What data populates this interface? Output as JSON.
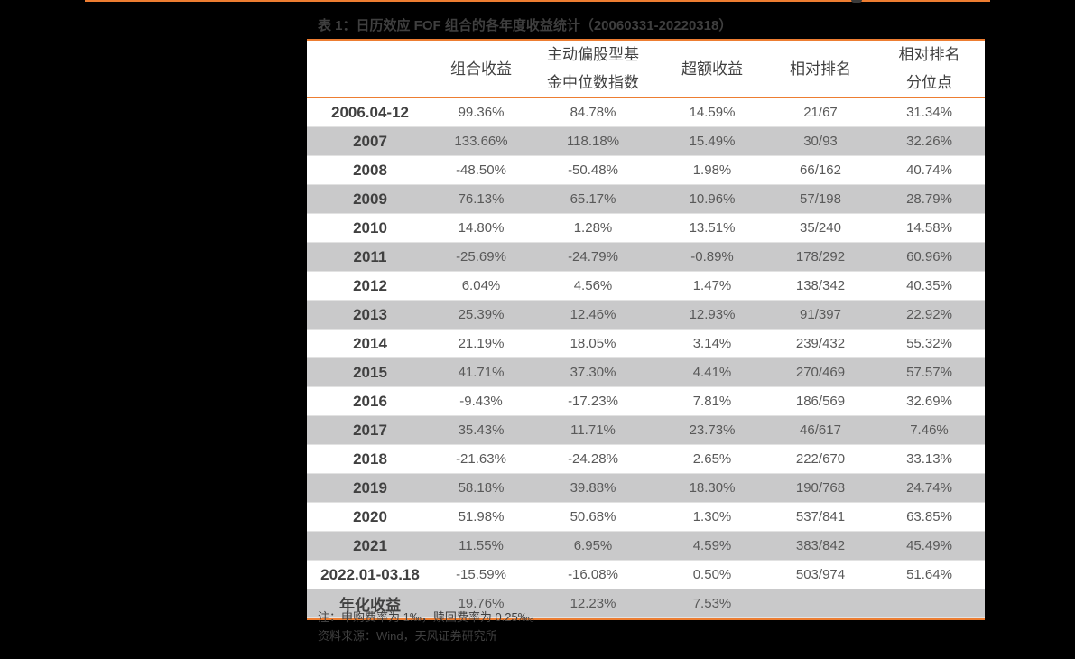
{
  "title": "表 1：日历效应 FOF 组合的各年度收益统计（20060331-20220318）",
  "colors": {
    "accent_rule": "#ED7D31",
    "shaded_row": "#C9C9CA",
    "background": "#000000",
    "text": "#404040"
  },
  "table": {
    "headers": [
      {
        "line1": "",
        "line2": ""
      },
      {
        "line1": "组合收益",
        "line2": ""
      },
      {
        "line1": "主动偏股型基",
        "line2": "金中位数指数"
      },
      {
        "line1": "超额收益",
        "line2": ""
      },
      {
        "line1": "相对排名",
        "line2": ""
      },
      {
        "line1": "相对排名",
        "line2": "分位点"
      }
    ],
    "rows": [
      {
        "period": "2006.04-12",
        "portfolio_return": "99.36%",
        "median_index": "84.78%",
        "excess_return": "14.59%",
        "rank": "21/67",
        "rank_percentile": "31.34%"
      },
      {
        "period": "2007",
        "portfolio_return": "133.66%",
        "median_index": "118.18%",
        "excess_return": "15.49%",
        "rank": "30/93",
        "rank_percentile": "32.26%"
      },
      {
        "period": "2008",
        "portfolio_return": "-48.50%",
        "median_index": "-50.48%",
        "excess_return": "1.98%",
        "rank": "66/162",
        "rank_percentile": "40.74%"
      },
      {
        "period": "2009",
        "portfolio_return": "76.13%",
        "median_index": "65.17%",
        "excess_return": "10.96%",
        "rank": "57/198",
        "rank_percentile": "28.79%"
      },
      {
        "period": "2010",
        "portfolio_return": "14.80%",
        "median_index": "1.28%",
        "excess_return": "13.51%",
        "rank": "35/240",
        "rank_percentile": "14.58%"
      },
      {
        "period": "2011",
        "portfolio_return": "-25.69%",
        "median_index": "-24.79%",
        "excess_return": "-0.89%",
        "rank": "178/292",
        "rank_percentile": "60.96%"
      },
      {
        "period": "2012",
        "portfolio_return": "6.04%",
        "median_index": "4.56%",
        "excess_return": "1.47%",
        "rank": "138/342",
        "rank_percentile": "40.35%"
      },
      {
        "period": "2013",
        "portfolio_return": "25.39%",
        "median_index": "12.46%",
        "excess_return": "12.93%",
        "rank": "91/397",
        "rank_percentile": "22.92%"
      },
      {
        "period": "2014",
        "portfolio_return": "21.19%",
        "median_index": "18.05%",
        "excess_return": "3.14%",
        "rank": "239/432",
        "rank_percentile": "55.32%"
      },
      {
        "period": "2015",
        "portfolio_return": "41.71%",
        "median_index": "37.30%",
        "excess_return": "4.41%",
        "rank": "270/469",
        "rank_percentile": "57.57%"
      },
      {
        "period": "2016",
        "portfolio_return": "-9.43%",
        "median_index": "-17.23%",
        "excess_return": "7.81%",
        "rank": "186/569",
        "rank_percentile": "32.69%"
      },
      {
        "period": "2017",
        "portfolio_return": "35.43%",
        "median_index": "11.71%",
        "excess_return": "23.73%",
        "rank": "46/617",
        "rank_percentile": "7.46%"
      },
      {
        "period": "2018",
        "portfolio_return": "-21.63%",
        "median_index": "-24.28%",
        "excess_return": "2.65%",
        "rank": "222/670",
        "rank_percentile": "33.13%"
      },
      {
        "period": "2019",
        "portfolio_return": "58.18%",
        "median_index": "39.88%",
        "excess_return": "18.30%",
        "rank": "190/768",
        "rank_percentile": "24.74%"
      },
      {
        "period": "2020",
        "portfolio_return": "51.98%",
        "median_index": "50.68%",
        "excess_return": "1.30%",
        "rank": "537/841",
        "rank_percentile": "63.85%"
      },
      {
        "period": "2021",
        "portfolio_return": "11.55%",
        "median_index": "6.95%",
        "excess_return": "4.59%",
        "rank": "383/842",
        "rank_percentile": "45.49%"
      },
      {
        "period": "2022.01-03.18",
        "portfolio_return": "-15.59%",
        "median_index": "-16.08%",
        "excess_return": "0.50%",
        "rank": "503/974",
        "rank_percentile": "51.64%"
      },
      {
        "period": "年化收益",
        "portfolio_return": "19.76%",
        "median_index": "12.23%",
        "excess_return": "7.53%",
        "rank": "",
        "rank_percentile": ""
      }
    ]
  },
  "notes": {
    "note": "注：申购费率为 1‰，赎回费率为 0.25‰。",
    "source": "资料来源：Wind，天风证券研究所"
  }
}
